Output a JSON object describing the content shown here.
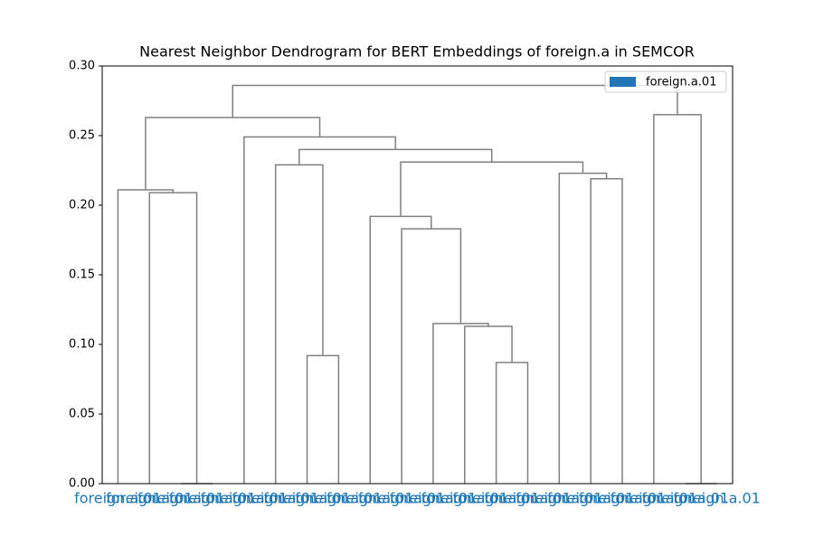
{
  "chart_data": {
    "type": "dendrogram",
    "title": "Nearest Neighbor Dendrogram for BERT Embeddings of foreign.a in SEMCOR",
    "labels": [
      "foreign.a.01",
      "foreign.a.01",
      "foreign.a.01",
      "foreign.a.01",
      "foreign.a.01",
      "foreign.a.01",
      "foreign.a.01",
      "foreign.a.01",
      "foreign.a.01",
      "foreign.a.01",
      "foreign.a.01",
      "foreign.a.01",
      "foreign.a.01",
      "foreign.a.01",
      "foreign.a.01",
      "foreign.a.01",
      "foreign.a.01",
      "foreign.a.01",
      "foreign.a.01",
      "foreign.a.01"
    ],
    "label_color": "#1f77b4",
    "link_color": "#808080",
    "merges": [
      {
        "children": [
          2,
          3
        ],
        "height": 0.0
      },
      {
        "children": [
          1,
          20
        ],
        "height": 0.209
      },
      {
        "children": [
          0,
          21
        ],
        "height": 0.211
      },
      {
        "children": [
          6,
          7
        ],
        "height": 0.092
      },
      {
        "children": [
          5,
          23
        ],
        "height": 0.229
      },
      {
        "children": [
          12,
          13
        ],
        "height": 0.087
      },
      {
        "children": [
          11,
          25
        ],
        "height": 0.113
      },
      {
        "children": [
          10,
          26
        ],
        "height": 0.115
      },
      {
        "children": [
          9,
          27
        ],
        "height": 0.183
      },
      {
        "children": [
          8,
          28
        ],
        "height": 0.192
      },
      {
        "children": [
          15,
          16
        ],
        "height": 0.219
      },
      {
        "children": [
          14,
          30
        ],
        "height": 0.223
      },
      {
        "children": [
          29,
          31
        ],
        "height": 0.231
      },
      {
        "children": [
          24,
          32
        ],
        "height": 0.24
      },
      {
        "children": [
          4,
          33
        ],
        "height": 0.249
      },
      {
        "children": [
          22,
          34
        ],
        "height": 0.263
      },
      {
        "children": [
          18,
          19
        ],
        "height": 0.0
      },
      {
        "children": [
          17,
          36
        ],
        "height": 0.265
      },
      {
        "children": [
          35,
          37
        ],
        "height": 0.286
      }
    ],
    "ylim": [
      0,
      0.3
    ],
    "yticks": [
      {
        "value": 0,
        "label": "0.00"
      },
      {
        "value": 0.05,
        "label": "0.05"
      },
      {
        "value": 0.1,
        "label": "0.10"
      },
      {
        "value": 0.15,
        "label": "0.15"
      },
      {
        "value": 0.2,
        "label": "0.20"
      },
      {
        "value": 0.25,
        "label": "0.25"
      },
      {
        "value": 0.3,
        "label": "0.30"
      }
    ],
    "legend": {
      "label": "foreign.a.01",
      "color": "#1f77b4",
      "position": "upper right"
    }
  }
}
